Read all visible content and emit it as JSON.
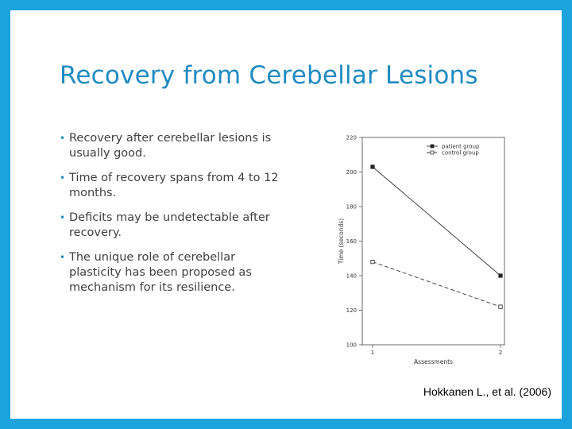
{
  "slide": {
    "title": "Recovery from Cerebellar Lesions",
    "bullets": [
      "Recovery after cerebellar lesions is usually good.",
      "Time of recovery spans from 4 to 12 months.",
      "Deficits may be undetectable after recovery.",
      "The unique role of cerebellar plasticity has been proposed as mechanism for its resilience."
    ],
    "citation": "Hokkanen L., et al. (2006)",
    "colors": {
      "frame": "#1aa3dc",
      "title": "#1f8bc2",
      "body_text": "#404040"
    }
  },
  "chart_data": {
    "type": "line",
    "x": [
      1,
      2
    ],
    "xlabel": "Assessments",
    "ylabel": "Time (seconds)",
    "ylim": [
      100,
      220
    ],
    "yticks": [
      100,
      120,
      140,
      160,
      180,
      200,
      220
    ],
    "xticks": [
      1,
      2
    ],
    "grid": false,
    "legend_position": "top-right",
    "series": [
      {
        "name": "patient group",
        "values": [
          203,
          140
        ],
        "line_style": "solid",
        "marker": "filled-square"
      },
      {
        "name": "control group",
        "values": [
          148,
          122
        ],
        "line_style": "dashed",
        "marker": "open-square"
      }
    ]
  }
}
